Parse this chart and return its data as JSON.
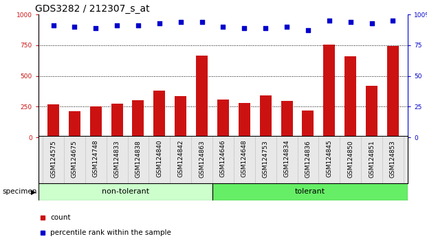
{
  "title": "GDS3282 / 212307_s_at",
  "categories": [
    "GSM124575",
    "GSM124675",
    "GSM124748",
    "GSM124833",
    "GSM124838",
    "GSM124840",
    "GSM124842",
    "GSM124863",
    "GSM124646",
    "GSM124648",
    "GSM124753",
    "GSM124834",
    "GSM124836",
    "GSM124845",
    "GSM124850",
    "GSM124851",
    "GSM124853"
  ],
  "bar_values": [
    270,
    215,
    250,
    275,
    300,
    380,
    335,
    665,
    305,
    280,
    340,
    295,
    220,
    755,
    660,
    420,
    745
  ],
  "percentile_values": [
    91,
    90,
    89,
    91,
    91,
    93,
    94,
    94,
    90,
    89,
    89,
    90,
    87,
    95,
    94,
    93,
    95
  ],
  "group_labels": [
    "non-tolerant",
    "tolerant"
  ],
  "non_tolerant_count": 8,
  "tolerant_count": 9,
  "group_colors": [
    "#ccffcc",
    "#66ee66"
  ],
  "bar_color": "#cc1111",
  "dot_color": "#0000cc",
  "ylim_left": [
    0,
    1000
  ],
  "ylim_right": [
    0,
    100
  ],
  "yticks_left": [
    0,
    250,
    500,
    750,
    1000
  ],
  "yticks_right": [
    0,
    25,
    50,
    75,
    100
  ],
  "ylabel_left_color": "#cc1111",
  "ylabel_right_color": "#0000cc",
  "background_color": "#ffffff",
  "legend_count_color": "#cc1111",
  "legend_dot_color": "#0000cc",
  "legend_count_label": "count",
  "legend_percentile_label": "percentile rank within the sample",
  "specimen_label": "specimen",
  "title_fontsize": 10,
  "tick_fontsize": 6.5,
  "legend_fontsize": 7.5
}
